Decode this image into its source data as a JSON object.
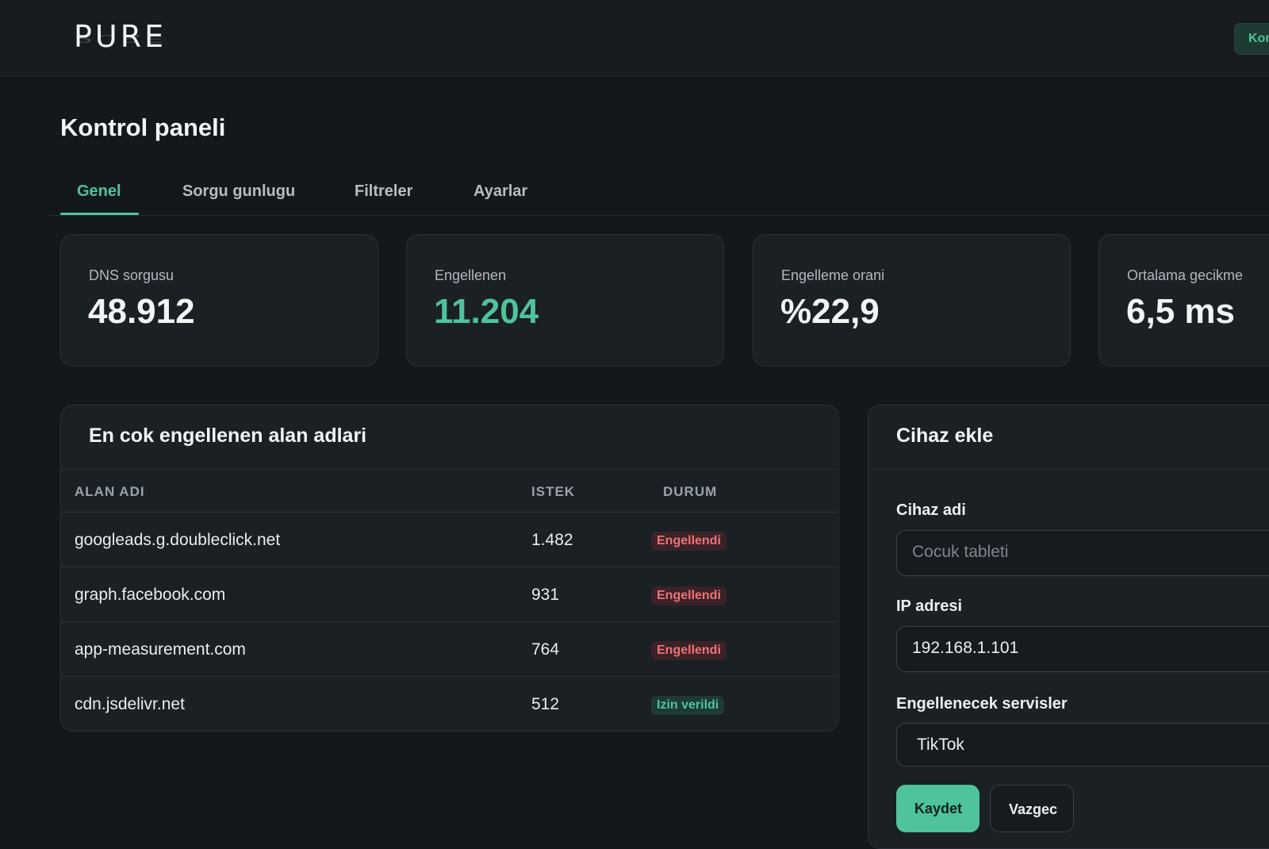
{
  "header": {
    "logo": "PURE",
    "action_label": "Kontrol"
  },
  "page": {
    "title": "Kontrol paneli"
  },
  "tabs": [
    {
      "label": "Genel"
    },
    {
      "label": "Sorgu gunlugu"
    },
    {
      "label": "Filtreler"
    },
    {
      "label": "Ayarlar"
    }
  ],
  "stats": [
    {
      "label": "DNS sorgusu",
      "value": "48.912"
    },
    {
      "label": "Engellenen",
      "value": "11.204"
    },
    {
      "label": "Engelleme orani",
      "value": "%22,9"
    },
    {
      "label": "Ortalama gecikme",
      "value": "6,5 ms"
    }
  ],
  "top_domains": {
    "title": "En cok engellenen alan adlari",
    "columns": [
      "ALAN ADI",
      "ISTEK",
      "DURUM"
    ],
    "rows": [
      {
        "domain": "googleads.g.doubleclick.net",
        "count": "1.482",
        "status": "Engellendi"
      },
      {
        "domain": "graph.facebook.com",
        "count": "931",
        "status": "Engellendi"
      },
      {
        "domain": "app-measurement.com",
        "count": "764",
        "status": "Engellendi"
      },
      {
        "domain": "cdn.jsdelivr.net",
        "count": "512",
        "status": "Izin verildi"
      }
    ]
  },
  "add_device": {
    "title": "Cihaz ekle",
    "name_label": "Cihaz adi",
    "name_placeholder": "Cocuk tableti",
    "ip_label": "IP adresi",
    "ip_value": "192.168.1.101",
    "services_label": "Engellenecek servisler",
    "services_value": "TikTok",
    "save_label": "Kaydet",
    "cancel_label": "Vazgec"
  },
  "colors": {
    "accent": "#4fc39b",
    "blocked": "#f0737b",
    "background": "#14181c"
  }
}
